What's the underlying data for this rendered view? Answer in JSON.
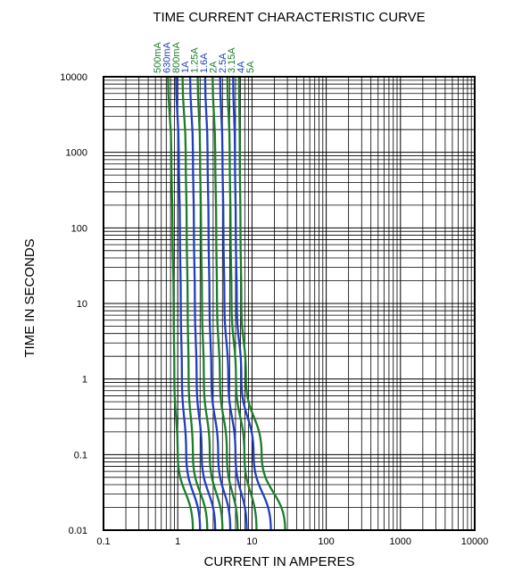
{
  "chart_data": {
    "type": "line",
    "title": "TIME CURRENT CHARACTERISTIC CURVE",
    "xlabel": "CURRENT IN AMPERES",
    "ylabel": "TIME IN SECONDS",
    "x_scale": "log",
    "y_scale": "log",
    "xlim": [
      0.1,
      10000
    ],
    "ylim": [
      0.01,
      10000
    ],
    "grid": true,
    "x_ticks": [
      {
        "value": 0.1,
        "label": "0.1"
      },
      {
        "value": 1,
        "label": "1"
      },
      {
        "value": 10,
        "label": "10"
      },
      {
        "value": 100,
        "label": "100"
      },
      {
        "value": 1000,
        "label": "1000"
      },
      {
        "value": 10000,
        "label": "10000"
      }
    ],
    "y_ticks": [
      {
        "value": 10000,
        "label": "10000"
      },
      {
        "value": 1000,
        "label": "1000"
      },
      {
        "value": 100,
        "label": "100"
      },
      {
        "value": 10,
        "label": "10"
      },
      {
        "value": 1,
        "label": "1"
      },
      {
        "value": 0.1,
        "label": "0.1"
      },
      {
        "value": 0.01,
        "label": "0.01"
      }
    ],
    "series": [
      {
        "name": "500mA",
        "color": "#1b7d2a",
        "points": [
          [
            0.74,
            10000
          ],
          [
            0.82,
            1000
          ],
          [
            0.85,
            100
          ],
          [
            0.88,
            10
          ],
          [
            0.9,
            1
          ],
          [
            1.0,
            0.1
          ],
          [
            1.6,
            0.01
          ]
        ]
      },
      {
        "name": "630mA",
        "color": "#1f3fbf",
        "points": [
          [
            0.95,
            10000
          ],
          [
            1.03,
            1000
          ],
          [
            1.07,
            100
          ],
          [
            1.1,
            10
          ],
          [
            1.14,
            1
          ],
          [
            1.3,
            0.1
          ],
          [
            2.0,
            0.01
          ]
        ]
      },
      {
        "name": "800mA",
        "color": "#1b7d2a",
        "points": [
          [
            1.16,
            10000
          ],
          [
            1.28,
            1000
          ],
          [
            1.32,
            100
          ],
          [
            1.36,
            10
          ],
          [
            1.4,
            1
          ],
          [
            1.6,
            0.1
          ],
          [
            2.5,
            0.01
          ]
        ]
      },
      {
        "name": "1A",
        "color": "#1f3fbf",
        "points": [
          [
            1.47,
            10000
          ],
          [
            1.6,
            1000
          ],
          [
            1.65,
            100
          ],
          [
            1.7,
            10
          ],
          [
            1.8,
            1
          ],
          [
            2.1,
            0.1
          ],
          [
            3.2,
            0.01
          ]
        ]
      },
      {
        "name": "1.25A",
        "color": "#1b7d2a",
        "points": [
          [
            1.86,
            10000
          ],
          [
            2.0,
            1000
          ],
          [
            2.06,
            100
          ],
          [
            2.12,
            10
          ],
          [
            2.25,
            1
          ],
          [
            2.7,
            0.1
          ],
          [
            4.0,
            0.01
          ]
        ]
      },
      {
        "name": "1.6A",
        "color": "#1f3fbf",
        "points": [
          [
            2.34,
            10000
          ],
          [
            2.52,
            1000
          ],
          [
            2.6,
            100
          ],
          [
            2.68,
            10
          ],
          [
            2.85,
            1
          ],
          [
            3.5,
            0.1
          ],
          [
            5.1,
            0.01
          ]
        ]
      },
      {
        "name": "2A",
        "color": "#1b7d2a",
        "points": [
          [
            2.95,
            10000
          ],
          [
            3.2,
            1000
          ],
          [
            3.3,
            100
          ],
          [
            3.38,
            10
          ],
          [
            3.7,
            1
          ],
          [
            4.6,
            0.1
          ],
          [
            6.4,
            0.01
          ]
        ]
      },
      {
        "name": "2.5A",
        "color": "#1f3fbf",
        "points": [
          [
            3.72,
            10000
          ],
          [
            4.0,
            1000
          ],
          [
            4.12,
            100
          ],
          [
            4.25,
            10
          ],
          [
            4.8,
            1
          ],
          [
            6.0,
            0.1
          ],
          [
            8.5,
            0.01
          ]
        ]
      },
      {
        "name": "3.15A",
        "color": "#1b7d2a",
        "points": [
          [
            4.67,
            10000
          ],
          [
            5.0,
            1000
          ],
          [
            5.15,
            100
          ],
          [
            5.3,
            10
          ],
          [
            6.1,
            1
          ],
          [
            7.9,
            0.1
          ],
          [
            11.5,
            0.01
          ]
        ]
      },
      {
        "name": "4A",
        "color": "#1f3fbf",
        "points": [
          [
            5.58,
            10000
          ],
          [
            5.9,
            1000
          ],
          [
            6.05,
            100
          ],
          [
            6.25,
            10
          ],
          [
            7.2,
            1
          ],
          [
            10.5,
            0.1
          ],
          [
            18,
            0.01
          ]
        ]
      },
      {
        "name": "5A",
        "color": "#1b7d2a",
        "points": [
          [
            6.7,
            10000
          ],
          [
            6.85,
            1000
          ],
          [
            7.0,
            100
          ],
          [
            7.2,
            10
          ],
          [
            8.3,
            1
          ],
          [
            13.5,
            0.1
          ],
          [
            28,
            0.01
          ]
        ]
      }
    ]
  }
}
